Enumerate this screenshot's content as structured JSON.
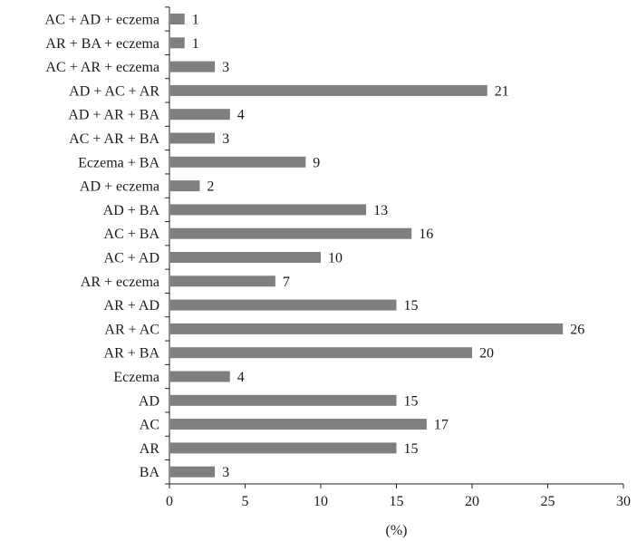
{
  "chart_data": {
    "type": "bar",
    "orientation": "horizontal",
    "categories": [
      "AC + AD + eczema",
      "AR + BA + eczema",
      "AC + AR + eczema",
      "AD + AC + AR",
      "AD + AR + BA",
      "AC + AR + BA",
      "Eczema + BA",
      "AD + eczema",
      "AD + BA",
      "AC + BA",
      "AC + AD",
      "AR + eczema",
      "AR + AD",
      "AR + AC",
      "AR + BA",
      "Eczema",
      "AD",
      "AC",
      "AR",
      "BA"
    ],
    "values": [
      1,
      1,
      3,
      21,
      4,
      3,
      9,
      2,
      13,
      16,
      10,
      7,
      15,
      26,
      20,
      4,
      15,
      17,
      15,
      3
    ],
    "data_labels": [
      "1",
      "1",
      "3",
      "21",
      "4",
      "3",
      "9",
      "2",
      "13",
      "16",
      "10",
      "7",
      "15",
      "26",
      "20",
      "4",
      "15",
      "17",
      "15",
      "3"
    ],
    "xlabel": "(%)",
    "ylabel": "",
    "xlim": [
      0,
      30
    ],
    "xticks": [
      "0",
      "5",
      "10",
      "15",
      "20",
      "25",
      "30"
    ],
    "grid": false,
    "legend": "none",
    "bar_color": "#7f7f7f"
  }
}
